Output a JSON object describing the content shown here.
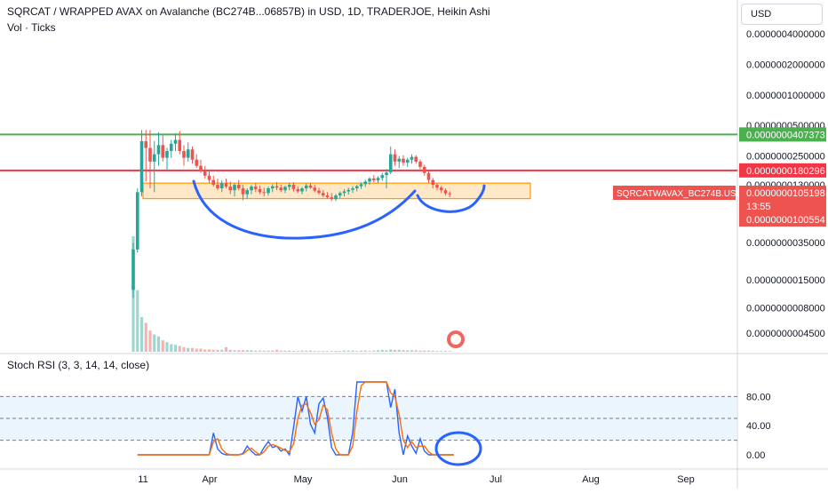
{
  "header": {
    "title": "SQRCAT / WRAPPED AVAX on Avalanche (BC274B...06857B) in USD, 1D, TRADERJOE, Heikin Ashi",
    "subtitle": "Vol · Ticks"
  },
  "currency_button": "USD",
  "rsi_title": "Stoch RSI (3, 3, 14, 14, close)",
  "colors": {
    "up": "#26a69a",
    "down": "#ef5350",
    "green_line": "#4caf50",
    "red_line": "#f23645",
    "box": "#ff9800",
    "drawing": "#2962ff",
    "k_line": "#2962ff",
    "d_line": "#ff6d00",
    "band": "#e3f2fd"
  },
  "chart_data": [
    {
      "type": "candlestick",
      "scale": "log",
      "x_ticks": [
        "11",
        "Apr",
        "May",
        "Jun",
        "Jul",
        "Aug",
        "Sep"
      ],
      "y_ticks": [
        "0.0000004000000",
        "0.0000002000000",
        "0.0000001000000",
        "0.0000000500000",
        "0.0000000250000",
        "0.0000000130000",
        "0.0000000065000",
        "0.0000000035000",
        "0.0000000015000",
        "0.0000000008000",
        "0.0000000004500"
      ],
      "horizontal_lines": [
        {
          "color": "green",
          "value": 4.07373e-08,
          "label": "0.0000000407373"
        },
        {
          "color": "red",
          "value": 1.80296e-08,
          "label": "0.0000000180296"
        }
      ],
      "price_label": {
        "symbol": "SQRCATWAVAX_BC274B.USD",
        "value": "0.0000000105198",
        "countdown": "13:55",
        "low_label": "0.0000000100554"
      },
      "rectangle": {
        "top": 1.35e-08,
        "bottom": 9.5e-09,
        "note": ""
      },
      "candles": [
        {
          "d": 0,
          "o": 1.2e-09,
          "h": 3.5e-09,
          "l": 1e-09,
          "c": 3e-09
        },
        {
          "d": 1,
          "o": 3e-09,
          "h": 1.2e-08,
          "l": 2.8e-09,
          "c": 1.1e-08
        },
        {
          "d": 2,
          "o": 1.1e-08,
          "h": 4.5e-08,
          "l": 1e-08,
          "c": 3.5e-08
        },
        {
          "d": 3,
          "o": 3.5e-08,
          "h": 4.5e-08,
          "l": 1.4e-08,
          "c": 3e-08
        },
        {
          "d": 4,
          "o": 3e-08,
          "h": 4.5e-08,
          "l": 1.2e-08,
          "c": 2.2e-08
        },
        {
          "d": 5,
          "o": 2.2e-08,
          "h": 3.5e-08,
          "l": 1.1e-08,
          "c": 2.6e-08
        },
        {
          "d": 6,
          "o": 2.6e-08,
          "h": 4.3e-08,
          "l": 2e-08,
          "c": 3.2e-08
        },
        {
          "d": 7,
          "o": 3.2e-08,
          "h": 4e-08,
          "l": 2.2e-08,
          "c": 2.4e-08
        },
        {
          "d": 8,
          "o": 2.4e-08,
          "h": 3e-08,
          "l": 1.8e-08,
          "c": 2.8e-08
        },
        {
          "d": 9,
          "o": 2.8e-08,
          "h": 3.6e-08,
          "l": 2.4e-08,
          "c": 3.3e-08
        },
        {
          "d": 10,
          "o": 3.3e-08,
          "h": 4.2e-08,
          "l": 2.8e-08,
          "c": 3.6e-08
        },
        {
          "d": 11,
          "o": 3.6e-08,
          "h": 4.4e-08,
          "l": 2.6e-08,
          "c": 2.8e-08
        },
        {
          "d": 12,
          "o": 2.8e-08,
          "h": 3.2e-08,
          "l": 2e-08,
          "c": 2.4e-08
        },
        {
          "d": 13,
          "o": 2.4e-08,
          "h": 3.4e-08,
          "l": 2.2e-08,
          "c": 2.9e-08
        },
        {
          "d": 14,
          "o": 2.9e-08,
          "h": 3.1e-08,
          "l": 2.1e-08,
          "c": 2.3e-08
        },
        {
          "d": 15,
          "o": 2.3e-08,
          "h": 2.6e-08,
          "l": 1.9e-08,
          "c": 2e-08
        },
        {
          "d": 16,
          "o": 2e-08,
          "h": 2.3e-08,
          "l": 1.7e-08,
          "c": 1.8e-08
        },
        {
          "d": 17,
          "o": 1.8e-08,
          "h": 2e-08,
          "l": 1.5e-08,
          "c": 1.6e-08
        },
        {
          "d": 18,
          "o": 1.6e-08,
          "h": 1.8e-08,
          "l": 1.35e-08,
          "c": 1.45e-08
        },
        {
          "d": 19,
          "o": 1.45e-08,
          "h": 1.6e-08,
          "l": 1.25e-08,
          "c": 1.3e-08
        },
        {
          "d": 20,
          "o": 1.3e-08,
          "h": 1.5e-08,
          "l": 1.15e-08,
          "c": 1.2e-08
        },
        {
          "d": 21,
          "o": 1.2e-08,
          "h": 1.45e-08,
          "l": 1.1e-08,
          "c": 1.35e-08
        },
        {
          "d": 22,
          "o": 1.35e-08,
          "h": 1.5e-08,
          "l": 1.2e-08,
          "c": 1.25e-08
        },
        {
          "d": 23,
          "o": 1.25e-08,
          "h": 1.4e-08,
          "l": 1.05e-08,
          "c": 1.15e-08
        },
        {
          "d": 24,
          "o": 1.15e-08,
          "h": 1.35e-08,
          "l": 1e-08,
          "c": 1.3e-08
        },
        {
          "d": 25,
          "o": 1.3e-08,
          "h": 1.45e-08,
          "l": 1.15e-08,
          "c": 1.2e-08
        },
        {
          "d": 26,
          "o": 1.2e-08,
          "h": 1.3e-08,
          "l": 9.2e-09,
          "c": 1.05e-08
        },
        {
          "d": 27,
          "o": 1.05e-08,
          "h": 1.2e-08,
          "l": 9.5e-09,
          "c": 1.15e-08
        },
        {
          "d": 28,
          "o": 1.15e-08,
          "h": 1.3e-08,
          "l": 1.05e-08,
          "c": 1.25e-08
        },
        {
          "d": 29,
          "o": 1.25e-08,
          "h": 1.35e-08,
          "l": 1.1e-08,
          "c": 1.18e-08
        },
        {
          "d": 30,
          "o": 1.18e-08,
          "h": 1.28e-08,
          "l": 1.05e-08,
          "c": 1.1e-08
        },
        {
          "d": 31,
          "o": 1.1e-08,
          "h": 1.22e-08,
          "l": 1e-08,
          "c": 1.08e-08
        },
        {
          "d": 32,
          "o": 1.08e-08,
          "h": 1.25e-08,
          "l": 1.02e-08,
          "c": 1.2e-08
        },
        {
          "d": 33,
          "o": 1.2e-08,
          "h": 1.32e-08,
          "l": 1.1e-08,
          "c": 1.26e-08
        },
        {
          "d": 34,
          "o": 1.26e-08,
          "h": 1.38e-08,
          "l": 1.15e-08,
          "c": 1.22e-08
        },
        {
          "d": 35,
          "o": 1.22e-08,
          "h": 1.3e-08,
          "l": 1.1e-08,
          "c": 1.15e-08
        },
        {
          "d": 36,
          "o": 1.15e-08,
          "h": 1.28e-08,
          "l": 1.08e-08,
          "c": 1.24e-08
        },
        {
          "d": 37,
          "o": 1.24e-08,
          "h": 1.36e-08,
          "l": 1.15e-08,
          "c": 1.3e-08
        },
        {
          "d": 38,
          "o": 1.3e-08,
          "h": 1.38e-08,
          "l": 1.12e-08,
          "c": 1.18e-08
        },
        {
          "d": 39,
          "o": 1.18e-08,
          "h": 1.26e-08,
          "l": 1.08e-08,
          "c": 1.12e-08
        },
        {
          "d": 40,
          "o": 1.12e-08,
          "h": 1.24e-08,
          "l": 1.05e-08,
          "c": 1.2e-08
        },
        {
          "d": 41,
          "o": 1.2e-08,
          "h": 1.34e-08,
          "l": 1.12e-08,
          "c": 1.28e-08
        },
        {
          "d": 42,
          "o": 1.28e-08,
          "h": 1.36e-08,
          "l": 1.18e-08,
          "c": 1.22e-08
        },
        {
          "d": 43,
          "o": 1.22e-08,
          "h": 1.3e-08,
          "l": 1.1e-08,
          "c": 1.14e-08
        },
        {
          "d": 44,
          "o": 1.14e-08,
          "h": 1.22e-08,
          "l": 1.04e-08,
          "c": 1.08e-08
        },
        {
          "d": 45,
          "o": 1.08e-08,
          "h": 1.16e-08,
          "l": 9.8e-09,
          "c": 1.02e-08
        },
        {
          "d": 46,
          "o": 1.02e-08,
          "h": 1.1e-08,
          "l": 9.5e-09,
          "c": 9.8e-09
        },
        {
          "d": 47,
          "o": 9.8e-09,
          "h": 1.08e-08,
          "l": 9e-09,
          "c": 9.4e-09
        },
        {
          "d": 48,
          "o": 9.4e-09,
          "h": 1.06e-08,
          "l": 9e-09,
          "c": 1.02e-08
        },
        {
          "d": 49,
          "o": 1.02e-08,
          "h": 1.12e-08,
          "l": 9.6e-09,
          "c": 1.08e-08
        },
        {
          "d": 50,
          "o": 1.08e-08,
          "h": 1.18e-08,
          "l": 1e-08,
          "c": 1.12e-08
        },
        {
          "d": 51,
          "o": 1.12e-08,
          "h": 1.22e-08,
          "l": 1.04e-08,
          "c": 1.16e-08
        },
        {
          "d": 52,
          "o": 1.16e-08,
          "h": 1.26e-08,
          "l": 1.08e-08,
          "c": 1.2e-08
        },
        {
          "d": 53,
          "o": 1.2e-08,
          "h": 1.3e-08,
          "l": 1.12e-08,
          "c": 1.26e-08
        },
        {
          "d": 54,
          "o": 1.26e-08,
          "h": 1.38e-08,
          "l": 1.18e-08,
          "c": 1.32e-08
        },
        {
          "d": 55,
          "o": 1.32e-08,
          "h": 1.46e-08,
          "l": 1.24e-08,
          "c": 1.4e-08
        },
        {
          "d": 56,
          "o": 1.4e-08,
          "h": 1.55e-08,
          "l": 1.3e-08,
          "c": 1.5e-08
        },
        {
          "d": 57,
          "o": 1.5e-08,
          "h": 1.62e-08,
          "l": 1.38e-08,
          "c": 1.44e-08
        },
        {
          "d": 58,
          "o": 1.44e-08,
          "h": 1.58e-08,
          "l": 1.35e-08,
          "c": 1.52e-08
        },
        {
          "d": 59,
          "o": 1.52e-08,
          "h": 1.7e-08,
          "l": 1.42e-08,
          "c": 1.62e-08
        },
        {
          "d": 60,
          "o": 1.62e-08,
          "h": 1.85e-08,
          "l": 1.2e-08,
          "c": 1.72e-08
        },
        {
          "d": 61,
          "o": 1.72e-08,
          "h": 3.1e-08,
          "l": 1.65e-08,
          "c": 2.6e-08
        },
        {
          "d": 62,
          "o": 2.6e-08,
          "h": 2.9e-08,
          "l": 2e-08,
          "c": 2.2e-08
        },
        {
          "d": 63,
          "o": 2.2e-08,
          "h": 2.5e-08,
          "l": 1.9e-08,
          "c": 2.35e-08
        },
        {
          "d": 64,
          "o": 2.35e-08,
          "h": 2.55e-08,
          "l": 2e-08,
          "c": 2.15e-08
        },
        {
          "d": 65,
          "o": 2.15e-08,
          "h": 2.4e-08,
          "l": 1.95e-08,
          "c": 2.3e-08
        },
        {
          "d": 66,
          "o": 2.3e-08,
          "h": 2.6e-08,
          "l": 2.1e-08,
          "c": 2.45e-08
        },
        {
          "d": 67,
          "o": 2.45e-08,
          "h": 2.55e-08,
          "l": 2.1e-08,
          "c": 2.2e-08
        },
        {
          "d": 68,
          "o": 2.2e-08,
          "h": 2.3e-08,
          "l": 1.85e-08,
          "c": 1.95e-08
        },
        {
          "d": 69,
          "o": 1.95e-08,
          "h": 2.05e-08,
          "l": 1.6e-08,
          "c": 1.7e-08
        },
        {
          "d": 70,
          "o": 1.7e-08,
          "h": 1.8e-08,
          "l": 1.35e-08,
          "c": 1.45e-08
        },
        {
          "d": 71,
          "o": 1.45e-08,
          "h": 1.52e-08,
          "l": 1.2e-08,
          "c": 1.3e-08
        },
        {
          "d": 72,
          "o": 1.3e-08,
          "h": 1.36e-08,
          "l": 1.15e-08,
          "c": 1.22e-08
        },
        {
          "d": 73,
          "o": 1.22e-08,
          "h": 1.28e-08,
          "l": 1.08e-08,
          "c": 1.15e-08
        },
        {
          "d": 74,
          "o": 1.15e-08,
          "h": 1.2e-08,
          "l": 1.02e-08,
          "c": 1.07e-08
        },
        {
          "d": 75,
          "o": 1.07e-08,
          "h": 1.12e-08,
          "l": 9.8e-09,
          "c": 1.05e-08
        }
      ],
      "volume": [
        3.0,
        1.6,
        0.9,
        0.75,
        0.55,
        0.45,
        0.4,
        0.3,
        0.25,
        0.2,
        0.18,
        0.15,
        0.12,
        0.1,
        0.1,
        0.08,
        0.08,
        0.06,
        0.06,
        0.05,
        0.05,
        0.05,
        0.12,
        0.05,
        0.04,
        0.04,
        0.04,
        0.04,
        0.04,
        0.03,
        0.03,
        0.03,
        0.03,
        0.03,
        0.05,
        0.03,
        0.03,
        0.03,
        0.02,
        0.02,
        0.03,
        0.03,
        0.03,
        0.02,
        0.02,
        0.02,
        0.02,
        0.02,
        0.02,
        0.02,
        0.03,
        0.03,
        0.03,
        0.02,
        0.03,
        0.03,
        0.02,
        0.03,
        0.04,
        0.05,
        0.04,
        0.06,
        0.05,
        0.05,
        0.04,
        0.04,
        0.04,
        0.04,
        0.03,
        0.03,
        0.03,
        0.03,
        0.02,
        0.02,
        0.02,
        0.02
      ]
    },
    {
      "type": "line",
      "title": "Stoch RSI (3, 3, 14, 14, close)",
      "y_ticks": [
        "80.00",
        "40.00",
        "0.00"
      ],
      "ylim": [
        0,
        100
      ],
      "bands": [
        20,
        50,
        80
      ],
      "series": [
        {
          "name": "K",
          "values": [
            0,
            0,
            0,
            0,
            0,
            0,
            0,
            0,
            0,
            0,
            0,
            0,
            0,
            0,
            0,
            0,
            0,
            0,
            30,
            8,
            2,
            0,
            0,
            0,
            0,
            2,
            12,
            5,
            0,
            0,
            10,
            18,
            10,
            12,
            5,
            8,
            0,
            38,
            80,
            60,
            80,
            42,
            30,
            70,
            78,
            52,
            10,
            0,
            0,
            0,
            0,
            30,
            100,
            100,
            100,
            100,
            100,
            100,
            100,
            100,
            65,
            90,
            30,
            0,
            26,
            12,
            2,
            22,
            5,
            0,
            0,
            0,
            0,
            0,
            0,
            0
          ]
        },
        {
          "name": "D",
          "values": [
            0,
            0,
            0,
            0,
            0,
            0,
            0,
            0,
            0,
            0,
            0,
            0,
            0,
            0,
            0,
            0,
            0,
            0,
            18,
            22,
            8,
            2,
            0,
            0,
            0,
            1,
            6,
            9,
            4,
            0,
            4,
            12,
            14,
            12,
            9,
            6,
            4,
            15,
            50,
            68,
            70,
            58,
            42,
            48,
            68,
            62,
            30,
            8,
            0,
            0,
            0,
            12,
            60,
            95,
            100,
            100,
            100,
            100,
            100,
            100,
            85,
            80,
            55,
            20,
            10,
            18,
            10,
            12,
            12,
            4,
            0,
            0,
            0,
            0,
            0,
            0
          ]
        }
      ]
    }
  ]
}
